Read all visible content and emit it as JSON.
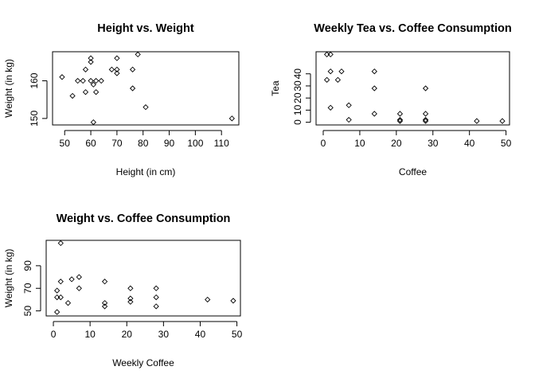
{
  "chart_data": [
    {
      "id": "height-weight",
      "type": "scatter",
      "title": "Height vs. Weight",
      "xlabel": "Height (in cm)",
      "ylabel": "Weight (in kg)",
      "xlim": [
        48,
        114
      ],
      "ylim": [
        149,
        167
      ],
      "xticks": [
        50,
        60,
        70,
        80,
        90,
        100,
        110
      ],
      "yticks": [
        150,
        160
      ],
      "grid": false,
      "points": [
        {
          "x": 49,
          "y": 161
        },
        {
          "x": 53,
          "y": 156
        },
        {
          "x": 55,
          "y": 160
        },
        {
          "x": 57,
          "y": 160
        },
        {
          "x": 58,
          "y": 163
        },
        {
          "x": 58,
          "y": 157
        },
        {
          "x": 60,
          "y": 166
        },
        {
          "x": 60,
          "y": 165
        },
        {
          "x": 60,
          "y": 160
        },
        {
          "x": 61,
          "y": 159
        },
        {
          "x": 61,
          "y": 149
        },
        {
          "x": 62,
          "y": 160
        },
        {
          "x": 62,
          "y": 157
        },
        {
          "x": 64,
          "y": 160
        },
        {
          "x": 68,
          "y": 163
        },
        {
          "x": 70,
          "y": 162
        },
        {
          "x": 70,
          "y": 163
        },
        {
          "x": 70,
          "y": 166
        },
        {
          "x": 76,
          "y": 163
        },
        {
          "x": 76,
          "y": 158
        },
        {
          "x": 78,
          "y": 167
        },
        {
          "x": 81,
          "y": 153
        },
        {
          "x": 114,
          "y": 150
        }
      ]
    },
    {
      "id": "tea-coffee",
      "type": "scatter",
      "title": "Weekly Tea vs. Coffee Consumption",
      "xlabel": "Coffee",
      "ylabel": "Tea",
      "xlim": [
        0,
        49
      ],
      "ylim": [
        0,
        56
      ],
      "xticks": [
        0,
        10,
        20,
        30,
        40,
        50
      ],
      "yticks": [
        0,
        10,
        20,
        30,
        40
      ],
      "grid": false,
      "points": [
        {
          "x": 1,
          "y": 56
        },
        {
          "x": 2,
          "y": 56
        },
        {
          "x": 1,
          "y": 35
        },
        {
          "x": 2,
          "y": 42
        },
        {
          "x": 2,
          "y": 12
        },
        {
          "x": 4,
          "y": 35
        },
        {
          "x": 5,
          "y": 42
        },
        {
          "x": 7,
          "y": 14
        },
        {
          "x": 7,
          "y": 2
        },
        {
          "x": 14,
          "y": 42
        },
        {
          "x": 14,
          "y": 28
        },
        {
          "x": 14,
          "y": 7
        },
        {
          "x": 21,
          "y": 7
        },
        {
          "x": 21,
          "y": 2
        },
        {
          "x": 21,
          "y": 1
        },
        {
          "x": 28,
          "y": 28
        },
        {
          "x": 28,
          "y": 7
        },
        {
          "x": 28,
          "y": 2
        },
        {
          "x": 28,
          "y": 1
        },
        {
          "x": 42,
          "y": 1
        },
        {
          "x": 49,
          "y": 1
        }
      ]
    },
    {
      "id": "weight-coffee",
      "type": "scatter",
      "title": "Weight vs. Coffee Consumption",
      "xlabel": "Weekly Coffee",
      "ylabel": "Weight (in kg)",
      "xlim": [
        0,
        49
      ],
      "ylim": [
        48,
        110
      ],
      "xticks": [
        0,
        10,
        20,
        30,
        40,
        50
      ],
      "yticks": [
        50,
        70,
        90
      ],
      "grid": false,
      "points": [
        {
          "x": 1,
          "y": 49
        },
        {
          "x": 1,
          "y": 62
        },
        {
          "x": 1,
          "y": 68
        },
        {
          "x": 2,
          "y": 110
        },
        {
          "x": 2,
          "y": 62
        },
        {
          "x": 2,
          "y": 76
        },
        {
          "x": 4,
          "y": 57
        },
        {
          "x": 5,
          "y": 78
        },
        {
          "x": 7,
          "y": 80
        },
        {
          "x": 7,
          "y": 70
        },
        {
          "x": 14,
          "y": 76
        },
        {
          "x": 14,
          "y": 57
        },
        {
          "x": 14,
          "y": 54
        },
        {
          "x": 21,
          "y": 70
        },
        {
          "x": 21,
          "y": 61
        },
        {
          "x": 21,
          "y": 58
        },
        {
          "x": 28,
          "y": 70
        },
        {
          "x": 28,
          "y": 62
        },
        {
          "x": 28,
          "y": 54
        },
        {
          "x": 42,
          "y": 60
        },
        {
          "x": 49,
          "y": 59
        }
      ]
    }
  ]
}
